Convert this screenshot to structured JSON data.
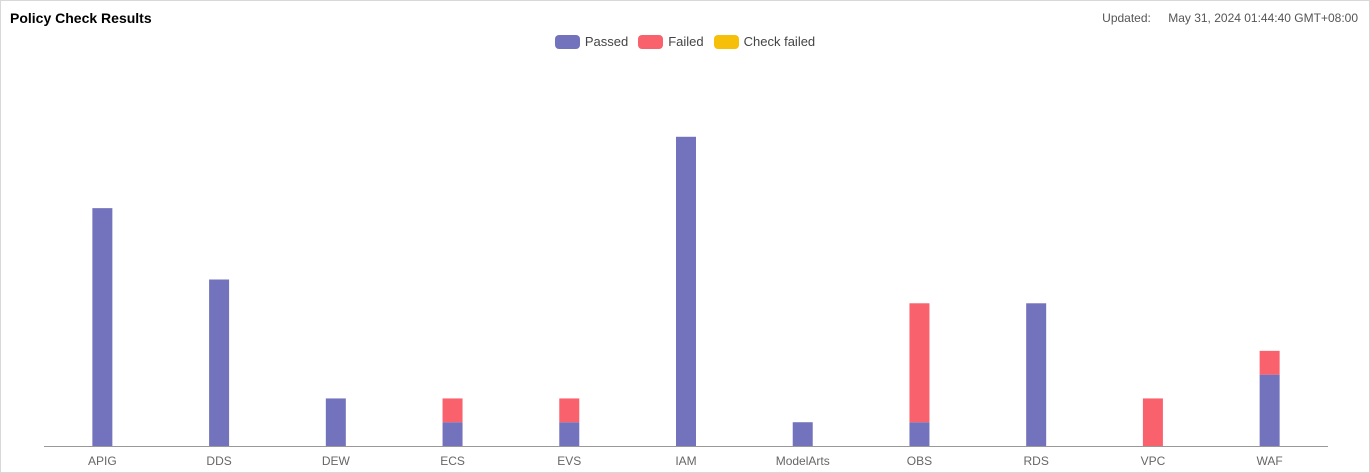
{
  "header": {
    "title": "Policy Check Results",
    "updated_label": "Updated:",
    "updated_value": "May 31, 2024 01:44:40 GMT+08:00"
  },
  "colors": {
    "passed": "#7373bd",
    "failed": "#f9626c",
    "check_failed": "#f5bf0a",
    "axis": "#999999"
  },
  "chart_data": {
    "type": "bar",
    "stacked": true,
    "categories": [
      "APIG",
      "DDS",
      "DEW",
      "ECS",
      "EVS",
      "IAM",
      "ModelArts",
      "OBS",
      "RDS",
      "VPC",
      "WAF"
    ],
    "series": [
      {
        "name": "Passed",
        "values": [
          10,
          7,
          2,
          1,
          1,
          13,
          1,
          1,
          6,
          0,
          3
        ]
      },
      {
        "name": "Failed",
        "values": [
          0,
          0,
          0,
          1,
          1,
          0,
          0,
          5,
          0,
          2,
          1
        ]
      },
      {
        "name": "Check failed",
        "values": [
          0,
          0,
          0,
          0,
          0,
          0,
          0,
          0,
          0,
          0,
          0
        ]
      }
    ],
    "ylim": [
      0,
      14
    ],
    "grid": false,
    "legend_position": "top-center",
    "title": "",
    "xlabel": "",
    "ylabel": ""
  }
}
